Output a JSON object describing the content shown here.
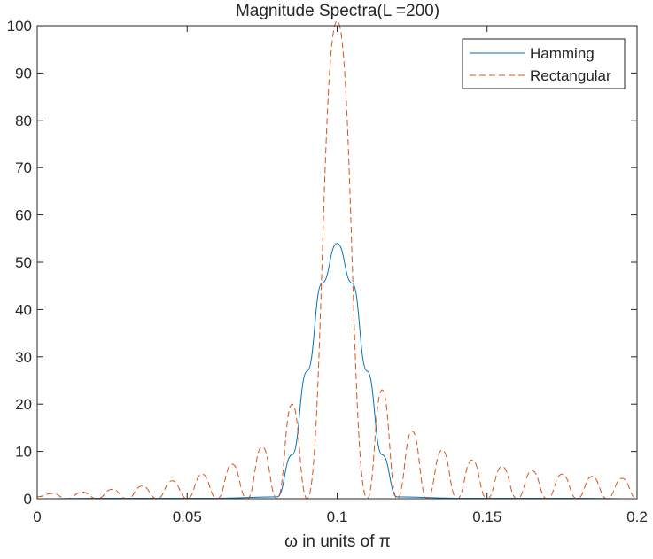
{
  "chart_data": {
    "type": "line",
    "title": "Magnitude Spectra(L =200)",
    "xlabel": "ω in units of π",
    "ylabel": "",
    "xlim": [
      0,
      0.2
    ],
    "ylim": [
      0,
      100
    ],
    "xticks": [
      0,
      0.05,
      0.1,
      0.15,
      0.2
    ],
    "xtick_labels": [
      "0",
      "0.05",
      "0.1",
      "0.15",
      "0.2"
    ],
    "yticks": [
      0,
      10,
      20,
      30,
      40,
      50,
      60,
      70,
      80,
      90,
      100
    ],
    "ytick_labels": [
      "0",
      "10",
      "20",
      "30",
      "40",
      "50",
      "60",
      "70",
      "80",
      "90",
      "100"
    ],
    "grid": false,
    "legend_position": "top-right",
    "series": [
      {
        "name": "Hamming",
        "style": "solid",
        "color": "#0072BD",
        "x": [
          0,
          0.02,
          0.04,
          0.06,
          0.08,
          0.085,
          0.09,
          0.095,
          0.1,
          0.105,
          0.11,
          0.115,
          0.12,
          0.14,
          0.16,
          0.18,
          0.2
        ],
        "y": [
          0,
          0.1,
          0.1,
          0.1,
          0.4,
          9.3,
          27.0,
          45.6,
          54.0,
          45.6,
          27.0,
          9.3,
          0.4,
          0.1,
          0.1,
          0.1,
          0
        ]
      },
      {
        "name": "Rectangular",
        "style": "dashed",
        "color": "#D95319",
        "x": [
          0,
          0.005,
          0.01,
          0.015,
          0.02,
          0.025,
          0.03,
          0.035,
          0.04,
          0.045,
          0.05,
          0.055,
          0.06,
          0.065,
          0.07,
          0.075,
          0.08,
          0.085,
          0.09,
          0.1,
          0.11,
          0.115,
          0.12,
          0.125,
          0.13,
          0.135,
          0.14,
          0.145,
          0.15,
          0.155,
          0.16,
          0.165,
          0.17,
          0.175,
          0.18,
          0.185,
          0.19,
          0.195,
          0.2
        ],
        "y": [
          0.4,
          1.1,
          0,
          1.4,
          0,
          2.0,
          0,
          2.7,
          0,
          3.8,
          0,
          5.2,
          0,
          7.3,
          0,
          11.0,
          0,
          20.0,
          0,
          101.0,
          0,
          23.0,
          0,
          14.3,
          0,
          10.3,
          0,
          8.2,
          0,
          6.8,
          0,
          5.9,
          0,
          5.2,
          0,
          4.7,
          0,
          4.3,
          0
        ]
      }
    ]
  }
}
